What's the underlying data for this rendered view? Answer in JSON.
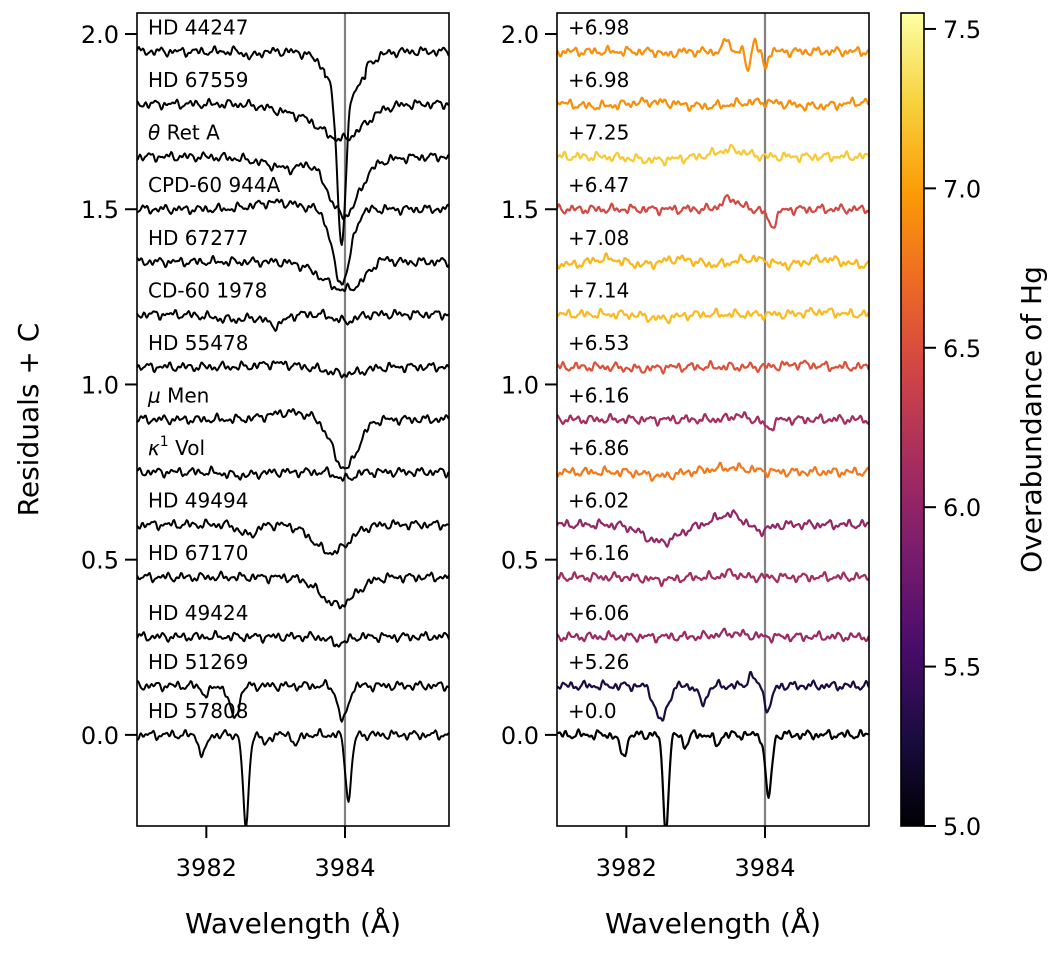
{
  "chart_data": [
    {
      "type": "line",
      "panel": "left",
      "xlabel": "Wavelength (Å)",
      "ylabel": "Residuals + C",
      "xlim": [
        3981.0,
        3985.5
      ],
      "ylim": [
        -0.26,
        2.06
      ],
      "xticks": [
        3982,
        3984
      ],
      "xtick_labels": [
        "3982",
        "3984"
      ],
      "yticks": [
        0.0,
        0.5,
        1.0,
        1.5,
        2.0
      ],
      "ytick_labels": [
        "0.0",
        "0.5",
        "1.0",
        "1.5",
        "2.0"
      ],
      "vline_x": 3984.0,
      "vline_color": "#808080",
      "series": [
        {
          "name": "HD 44247",
          "label_html": "HD 44247",
          "offset": 1.95,
          "color": "#000000"
        },
        {
          "name": "HD 67559",
          "label_html": "HD 67559",
          "offset": 1.8,
          "color": "#000000"
        },
        {
          "name": "θ Ret A",
          "label_html": "<tspan font-style='italic'>θ</tspan> Ret A",
          "offset": 1.65,
          "color": "#000000"
        },
        {
          "name": "CPD-60 944A",
          "label_html": "CPD-60 944A",
          "offset": 1.5,
          "color": "#000000"
        },
        {
          "name": "HD 67277",
          "label_html": "HD 67277",
          "offset": 1.35,
          "color": "#000000"
        },
        {
          "name": "CD-60 1978",
          "label_html": "CD-60 1978",
          "offset": 1.2,
          "color": "#000000"
        },
        {
          "name": "HD 55478",
          "label_html": "HD 55478",
          "offset": 1.05,
          "color": "#000000"
        },
        {
          "name": "μ Men",
          "label_html": "<tspan font-style='italic'>μ</tspan> Men",
          "offset": 0.9,
          "color": "#000000"
        },
        {
          "name": "κ1 Vol",
          "label_html": "<tspan font-style='italic'>κ</tspan><tspan dy='-9' font-size='14'>1</tspan><tspan dy='9'> Vol</tspan>",
          "offset": 0.75,
          "color": "#000000"
        },
        {
          "name": "HD 49494",
          "label_html": "HD 49494",
          "offset": 0.6,
          "color": "#000000"
        },
        {
          "name": "HD 67170",
          "label_html": "HD 67170",
          "offset": 0.45,
          "color": "#000000"
        },
        {
          "name": "HD 49424",
          "label_html": "HD 49424",
          "offset": 0.28,
          "color": "#000000"
        },
        {
          "name": "HD 51269",
          "label_html": "HD 51269",
          "offset": 0.14,
          "color": "#000000"
        },
        {
          "name": "HD 57808",
          "label_html": "HD 57808",
          "offset": 0.0,
          "color": "#000000"
        }
      ]
    },
    {
      "type": "line",
      "panel": "right",
      "xlabel": "Wavelength (Å)",
      "xlim": [
        3981.0,
        3985.5
      ],
      "ylim": [
        -0.26,
        2.06
      ],
      "xticks": [
        3982,
        3984
      ],
      "xtick_labels": [
        "3982",
        "3984"
      ],
      "yticks": [
        0.0,
        0.5,
        1.0,
        1.5,
        2.0
      ],
      "ytick_labels": [
        "0.0",
        "0.5",
        "1.0",
        "1.5",
        "2.0"
      ],
      "vline_x": 3984.0,
      "vline_color": "#808080",
      "series": [
        {
          "name": "+6.98",
          "offset": 1.95,
          "color": "#f98e09"
        },
        {
          "name": "+6.98",
          "offset": 1.8,
          "color": "#f98e09"
        },
        {
          "name": "+7.25",
          "offset": 1.65,
          "color": "#f8c932"
        },
        {
          "name": "+6.47",
          "offset": 1.5,
          "color": "#d44842"
        },
        {
          "name": "+7.08",
          "offset": 1.35,
          "color": "#fbb61a"
        },
        {
          "name": "+7.14",
          "offset": 1.2,
          "color": "#fbba1f"
        },
        {
          "name": "+6.53",
          "offset": 1.05,
          "color": "#dd513a"
        },
        {
          "name": "+6.16",
          "offset": 0.9,
          "color": "#a52c60"
        },
        {
          "name": "+6.86",
          "offset": 0.75,
          "color": "#f37819"
        },
        {
          "name": "+6.02",
          "offset": 0.6,
          "color": "#932667"
        },
        {
          "name": "+6.16",
          "offset": 0.45,
          "color": "#a52c60"
        },
        {
          "name": "+6.06",
          "offset": 0.28,
          "color": "#9b2964"
        },
        {
          "name": "+5.26",
          "offset": 0.14,
          "color": "#1b0c41"
        },
        {
          "name": "+0.0",
          "offset": 0.0,
          "color": "#000000"
        }
      ]
    }
  ],
  "colorbar": {
    "label": "Overabundance of Hg",
    "range": [
      5.0,
      7.55
    ],
    "ticks": [
      5.0,
      5.5,
      6.0,
      6.5,
      7.0,
      7.5
    ],
    "tick_labels": [
      "5.0",
      "5.5",
      "6.0",
      "6.5",
      "7.0",
      "7.5"
    ],
    "colormap": "inferno",
    "stops": [
      "#000004",
      "#1b0c41",
      "#4a0c6b",
      "#781c6d",
      "#a52c60",
      "#cf4446",
      "#ed6925",
      "#fb9b06",
      "#f7d13d",
      "#fcffa4"
    ]
  }
}
